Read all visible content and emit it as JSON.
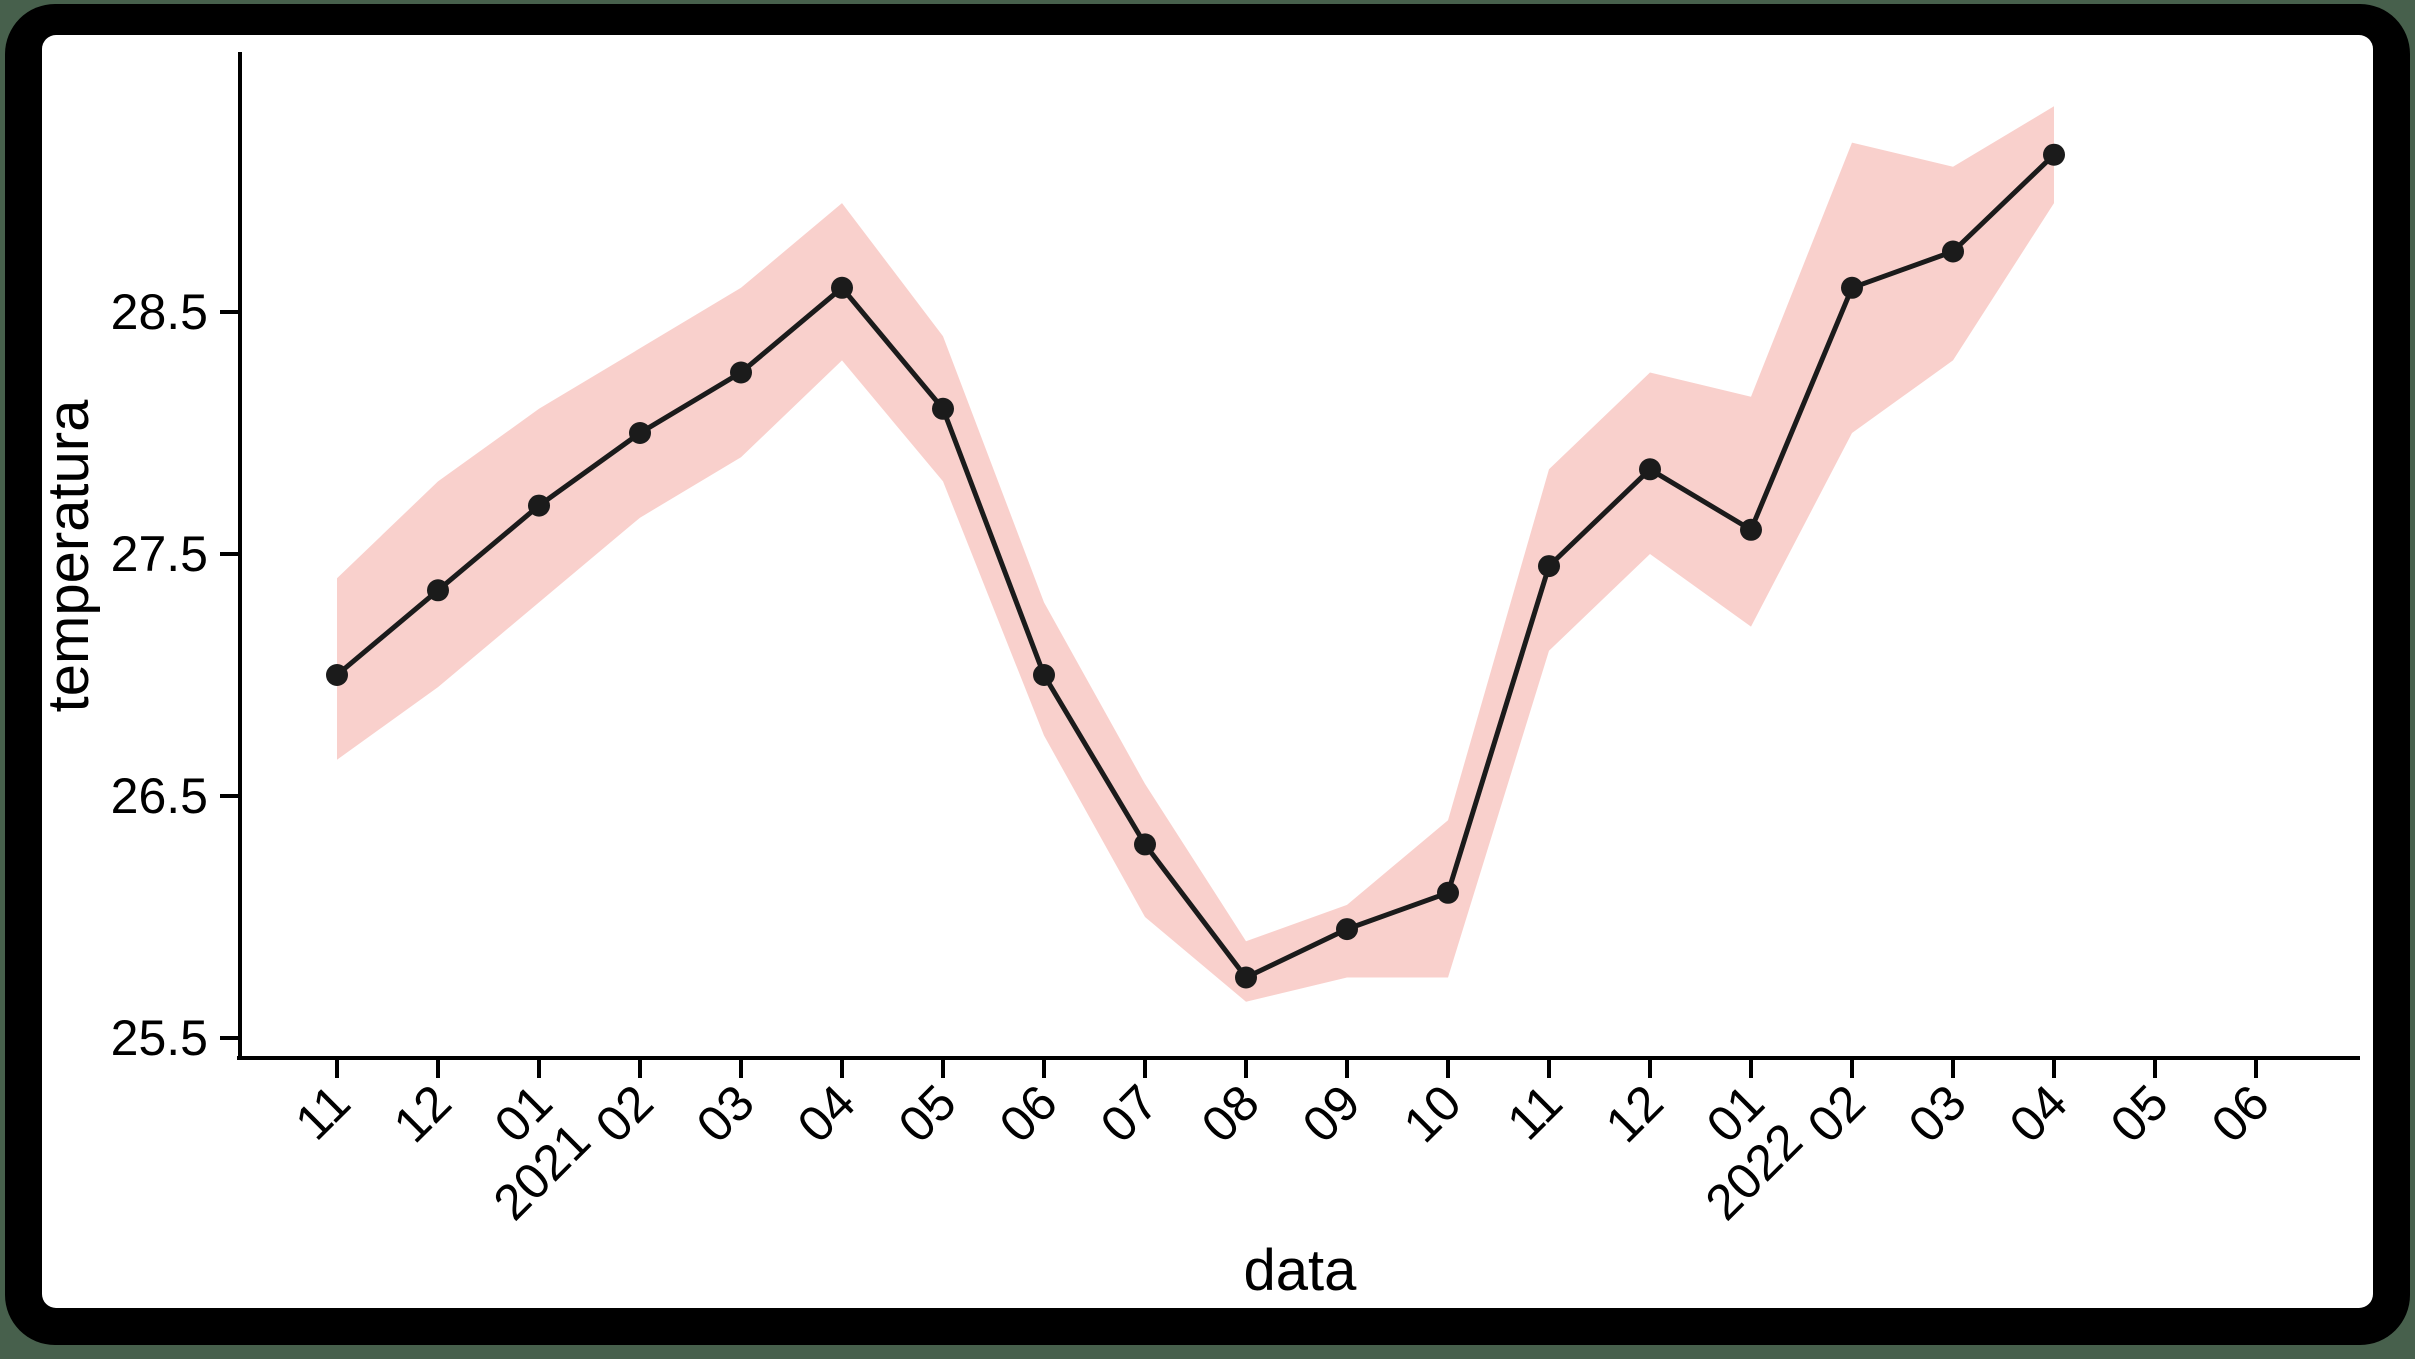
{
  "canvas": {
    "outer_background": "#47604c",
    "frame_color": "#000000",
    "panel_color": "#ffffff"
  },
  "chart_data": {
    "type": "line",
    "title": "",
    "xlabel": "data",
    "ylabel": "temperatura",
    "grid": false,
    "legend_position": "none",
    "ylim": [
      25.5,
      29.5
    ],
    "yticks": [
      25.5,
      26.5,
      27.5,
      28.5
    ],
    "ytick_labels": [
      "25.5",
      "26.5",
      "27.5",
      "28.5"
    ],
    "x_ticks": [
      {
        "month": "11",
        "year": ""
      },
      {
        "month": "12",
        "year": ""
      },
      {
        "month": "01",
        "year": "2021"
      },
      {
        "month": "02",
        "year": ""
      },
      {
        "month": "03",
        "year": ""
      },
      {
        "month": "04",
        "year": ""
      },
      {
        "month": "05",
        "year": ""
      },
      {
        "month": "06",
        "year": ""
      },
      {
        "month": "07",
        "year": ""
      },
      {
        "month": "08",
        "year": ""
      },
      {
        "month": "09",
        "year": ""
      },
      {
        "month": "10",
        "year": ""
      },
      {
        "month": "11",
        "year": ""
      },
      {
        "month": "12",
        "year": ""
      },
      {
        "month": "01",
        "year": "2022"
      },
      {
        "month": "02",
        "year": ""
      },
      {
        "month": "03",
        "year": ""
      },
      {
        "month": "04",
        "year": ""
      },
      {
        "month": "05",
        "year": ""
      },
      {
        "month": "06",
        "year": ""
      }
    ],
    "series": [
      {
        "name": "temperatura",
        "color": "#1b1b1b",
        "marker": "circle",
        "values": [
          27.0,
          27.35,
          27.7,
          28.0,
          28.25,
          28.6,
          28.1,
          27.0,
          26.3,
          25.75,
          25.95,
          26.1,
          27.45,
          27.85,
          27.6,
          28.6,
          28.75,
          29.15,
          null,
          null
        ]
      }
    ],
    "band": {
      "name": "confidence-band",
      "color": "#f9d0cc",
      "lower": [
        26.65,
        26.95,
        27.3,
        27.65,
        27.9,
        28.3,
        27.8,
        26.75,
        26.0,
        25.65,
        25.75,
        25.75,
        27.1,
        27.5,
        27.2,
        28.0,
        28.3,
        28.95,
        null,
        null
      ],
      "upper": [
        27.4,
        27.8,
        28.1,
        28.35,
        28.6,
        28.95,
        28.4,
        27.3,
        26.55,
        25.9,
        26.05,
        26.4,
        27.85,
        28.25,
        28.15,
        29.2,
        29.1,
        29.35,
        null,
        null
      ]
    }
  }
}
